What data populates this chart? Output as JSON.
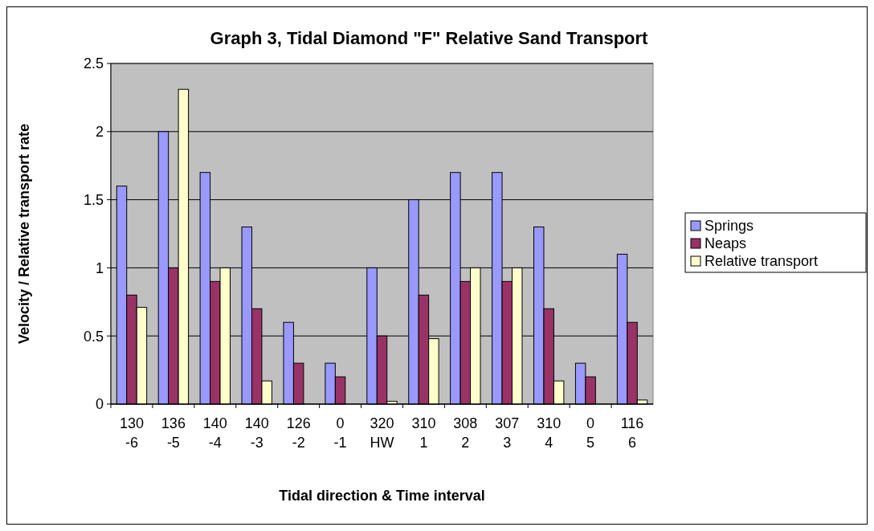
{
  "chart_data": {
    "type": "bar",
    "title": "Graph 3, Tidal Diamond \"F\" Relative Sand Transport",
    "xlabel": "Tidal direction & Time interval",
    "ylabel": "Velocity / Relative transport rate",
    "categories": [
      "130\n-6",
      "136\n-5",
      "140\n-4",
      "140\n-3",
      "126\n-2",
      "0\n-1",
      "320\nHW",
      "310\n1",
      "308\n2",
      "307\n3",
      "310\n4",
      "0\n5",
      "116\n6"
    ],
    "series": [
      {
        "name": "Springs",
        "color": "#9999ff",
        "values": [
          1.6,
          2.0,
          1.7,
          1.3,
          0.6,
          0.3,
          1.0,
          1.5,
          1.7,
          1.7,
          1.3,
          0.3,
          1.1
        ]
      },
      {
        "name": "Neaps",
        "color": "#993366",
        "values": [
          0.8,
          1.0,
          0.9,
          0.7,
          0.3,
          0.2,
          0.5,
          0.8,
          0.9,
          0.9,
          0.7,
          0.2,
          0.6
        ]
      },
      {
        "name": "Relative transport",
        "color": "#ffffcc",
        "values": [
          0.71,
          2.31,
          1.0,
          0.17,
          0,
          0,
          0.02,
          0.48,
          1.0,
          1.0,
          0.17,
          0,
          0.03
        ]
      }
    ],
    "ylim": [
      0,
      2.5
    ],
    "yticks": [
      0,
      0.5,
      1,
      1.5,
      2,
      2.5
    ],
    "grid": "y",
    "legend": "right"
  }
}
